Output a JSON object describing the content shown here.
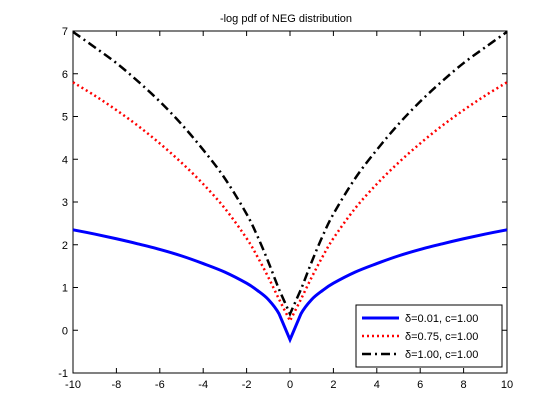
{
  "chart_data": {
    "type": "line",
    "title": "-log pdf of NEG distribution",
    "xlabel": "",
    "ylabel": "",
    "xlim": [
      -10,
      10
    ],
    "ylim": [
      -1,
      7
    ],
    "x_ticks": [
      "-10",
      "-8",
      "-6",
      "-4",
      "-2",
      "0",
      "2",
      "4",
      "6",
      "8",
      "10"
    ],
    "y_ticks": [
      "-1",
      "0",
      "1",
      "2",
      "3",
      "4",
      "5",
      "6",
      "7"
    ],
    "grid": false,
    "legend_position": "bottom-right",
    "x": [
      -10,
      -9,
      -8,
      -7,
      -6,
      -5,
      -4,
      -3,
      -2,
      -1.5,
      -1,
      -0.5,
      0,
      0.5,
      1,
      1.5,
      2,
      3,
      4,
      5,
      6,
      7,
      8,
      9,
      10
    ],
    "series": [
      {
        "name": "δ=0.01, c=1.00",
        "color": "#0000ff",
        "style": "solid",
        "values": [
          2.35,
          2.25,
          2.14,
          2.02,
          1.89,
          1.74,
          1.56,
          1.36,
          1.1,
          0.93,
          0.72,
          0.38,
          -0.22,
          0.38,
          0.72,
          0.93,
          1.1,
          1.36,
          1.56,
          1.74,
          1.89,
          2.02,
          2.14,
          2.25,
          2.35
        ]
      },
      {
        "name": "δ=0.75, c=1.00",
        "color": "#ff0000",
        "style": "dotted",
        "values": [
          5.8,
          5.49,
          5.15,
          4.78,
          4.37,
          3.92,
          3.42,
          2.85,
          2.15,
          1.72,
          1.24,
          0.72,
          0.22,
          0.72,
          1.24,
          1.72,
          2.15,
          2.85,
          3.42,
          3.92,
          4.37,
          4.78,
          5.15,
          5.49,
          5.8
        ]
      },
      {
        "name": "δ=1.00, c=1.00",
        "color": "#000000",
        "style": "dashdot",
        "values": [
          6.98,
          6.62,
          6.25,
          5.82,
          5.35,
          4.82,
          4.22,
          3.55,
          2.72,
          2.2,
          1.6,
          0.95,
          0.38,
          0.95,
          1.6,
          2.2,
          2.72,
          3.55,
          4.22,
          4.82,
          5.35,
          5.82,
          6.25,
          6.62,
          6.98
        ]
      }
    ]
  }
}
